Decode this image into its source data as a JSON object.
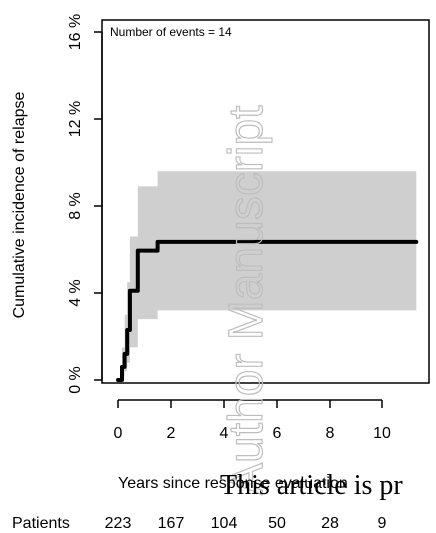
{
  "chart_data": {
    "type": "line",
    "title": "",
    "xlabel": "Years since response evaluation",
    "ylabel": "Cumulative incidence of relapse",
    "annotation": "Number of events = 14",
    "x_ticks": [
      "0",
      "2",
      "4",
      "6",
      "8",
      "10"
    ],
    "y_ticks": [
      "0 %",
      "4 %",
      "8 %",
      "12 %",
      "16 %"
    ],
    "xlim": [
      -0.5,
      11.3
    ],
    "ylim": [
      0,
      16
    ],
    "series": [
      {
        "x": [
          0,
          0.15,
          0.25,
          0.35,
          0.45,
          0.6,
          0.75,
          1.5,
          11.3
        ],
        "y": [
          0.0,
          0.6,
          1.2,
          2.3,
          4.1,
          4.1,
          5.95,
          6.35,
          6.35
        ]
      }
    ],
    "band": {
      "x": [
        0,
        0.15,
        0.25,
        0.35,
        0.45,
        0.6,
        0.75,
        1.5,
        11.3
      ],
      "lower": [
        0.0,
        0.2,
        0.4,
        0.8,
        1.5,
        1.5,
        2.8,
        3.2,
        3.2
      ],
      "upper": [
        0.0,
        1.5,
        3.0,
        4.5,
        6.6,
        6.6,
        8.9,
        9.6,
        9.6
      ]
    },
    "colors": {
      "line": "#000000",
      "band": "#cfcfcf"
    },
    "risk_table": {
      "label": "Patients",
      "values": [
        "223",
        "167",
        "104",
        "50",
        "28",
        "9"
      ]
    }
  },
  "watermark": {
    "vertical": "Author Manuscript",
    "bottom": "This article is pr"
  }
}
